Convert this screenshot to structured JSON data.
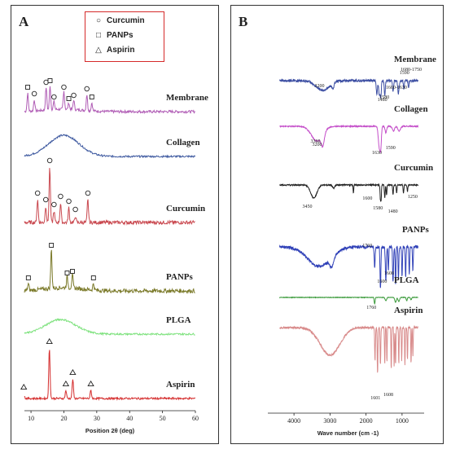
{
  "chart_data": [
    {
      "panel": "A",
      "type": "line",
      "xlabel": "Position 2θ (deg)",
      "xlim": [
        8,
        60
      ],
      "xticks": [
        10,
        20,
        30,
        40,
        50,
        60
      ],
      "legend": [
        {
          "symbol": "○",
          "label": "Curcumin"
        },
        {
          "symbol": "□",
          "label": "PANPs"
        },
        {
          "symbol": "△",
          "label": "Aspirin"
        }
      ],
      "series": [
        {
          "name": "Membrane",
          "color": "#b05cb5",
          "peaks": [
            [
              9,
              "□"
            ],
            [
              11,
              "○"
            ],
            [
              14.6,
              "○"
            ],
            [
              15.8,
              "□"
            ],
            [
              17,
              "○"
            ],
            [
              20,
              "○"
            ],
            [
              21.5,
              "□"
            ],
            [
              23,
              "○"
            ],
            [
              27,
              "○"
            ],
            [
              28.5,
              "□"
            ]
          ]
        },
        {
          "name": "Collagen",
          "color": "#3f5aa0",
          "broad_peak_2theta": 20
        },
        {
          "name": "Curcumin",
          "color": "#c9484f",
          "peaks": [
            [
              12,
              "○"
            ],
            [
              14.5,
              "○"
            ],
            [
              15.7,
              "○"
            ],
            [
              17,
              "○"
            ],
            [
              19,
              "○"
            ],
            [
              21.5,
              "○"
            ],
            [
              23.5,
              "○"
            ],
            [
              27.3,
              "○"
            ]
          ]
        },
        {
          "name": "PANPs",
          "color": "#7b7a2a",
          "peaks": [
            [
              9.2,
              "□"
            ],
            [
              16.2,
              "□"
            ],
            [
              21,
              "□"
            ],
            [
              22.6,
              "□"
            ],
            [
              29,
              "□"
            ]
          ]
        },
        {
          "name": "PLGA",
          "color": "#7ee27e",
          "broad_peak_2theta": 19
        },
        {
          "name": "Aspirin",
          "color": "#d42b2b",
          "peaks": [
            [
              7.8,
              "△"
            ],
            [
              15.6,
              "△"
            ],
            [
              20.6,
              "△"
            ],
            [
              22.7,
              "△"
            ],
            [
              28.2,
              "△"
            ]
          ]
        }
      ]
    },
    {
      "panel": "B",
      "type": "line",
      "xlabel": "Wave number (cm -1)",
      "xlim": [
        4500,
        500
      ],
      "xticks": [
        4000,
        3000,
        2000,
        1000
      ],
      "series": [
        {
          "name": "Membrane",
          "color": "#3d4fa3",
          "annotations": [
            "3200",
            "1680-1750",
            "1590",
            "1600-1630",
            "1580",
            "1480"
          ]
        },
        {
          "name": "Collagen",
          "color": "#c44ec9",
          "annotations": [
            "3360",
            "3200",
            "1630",
            "1590"
          ]
        },
        {
          "name": "Curcumin",
          "color": "#222222",
          "annotations": [
            "3450",
            "1600",
            "1580",
            "1480",
            "1250"
          ]
        },
        {
          "name": "PANPs",
          "color": "#3142b8",
          "annotations": [
            "1760",
            "1600",
            "1608"
          ]
        },
        {
          "name": "PLGA",
          "color": "#3a9a3a",
          "annotations": [
            "1760"
          ]
        },
        {
          "name": "Aspirin",
          "color": "#d88a8a",
          "annotations": [
            "1601",
            "1608"
          ]
        }
      ]
    }
  ],
  "panels": {
    "A": {
      "label": "A"
    },
    "B": {
      "label": "B"
    }
  }
}
